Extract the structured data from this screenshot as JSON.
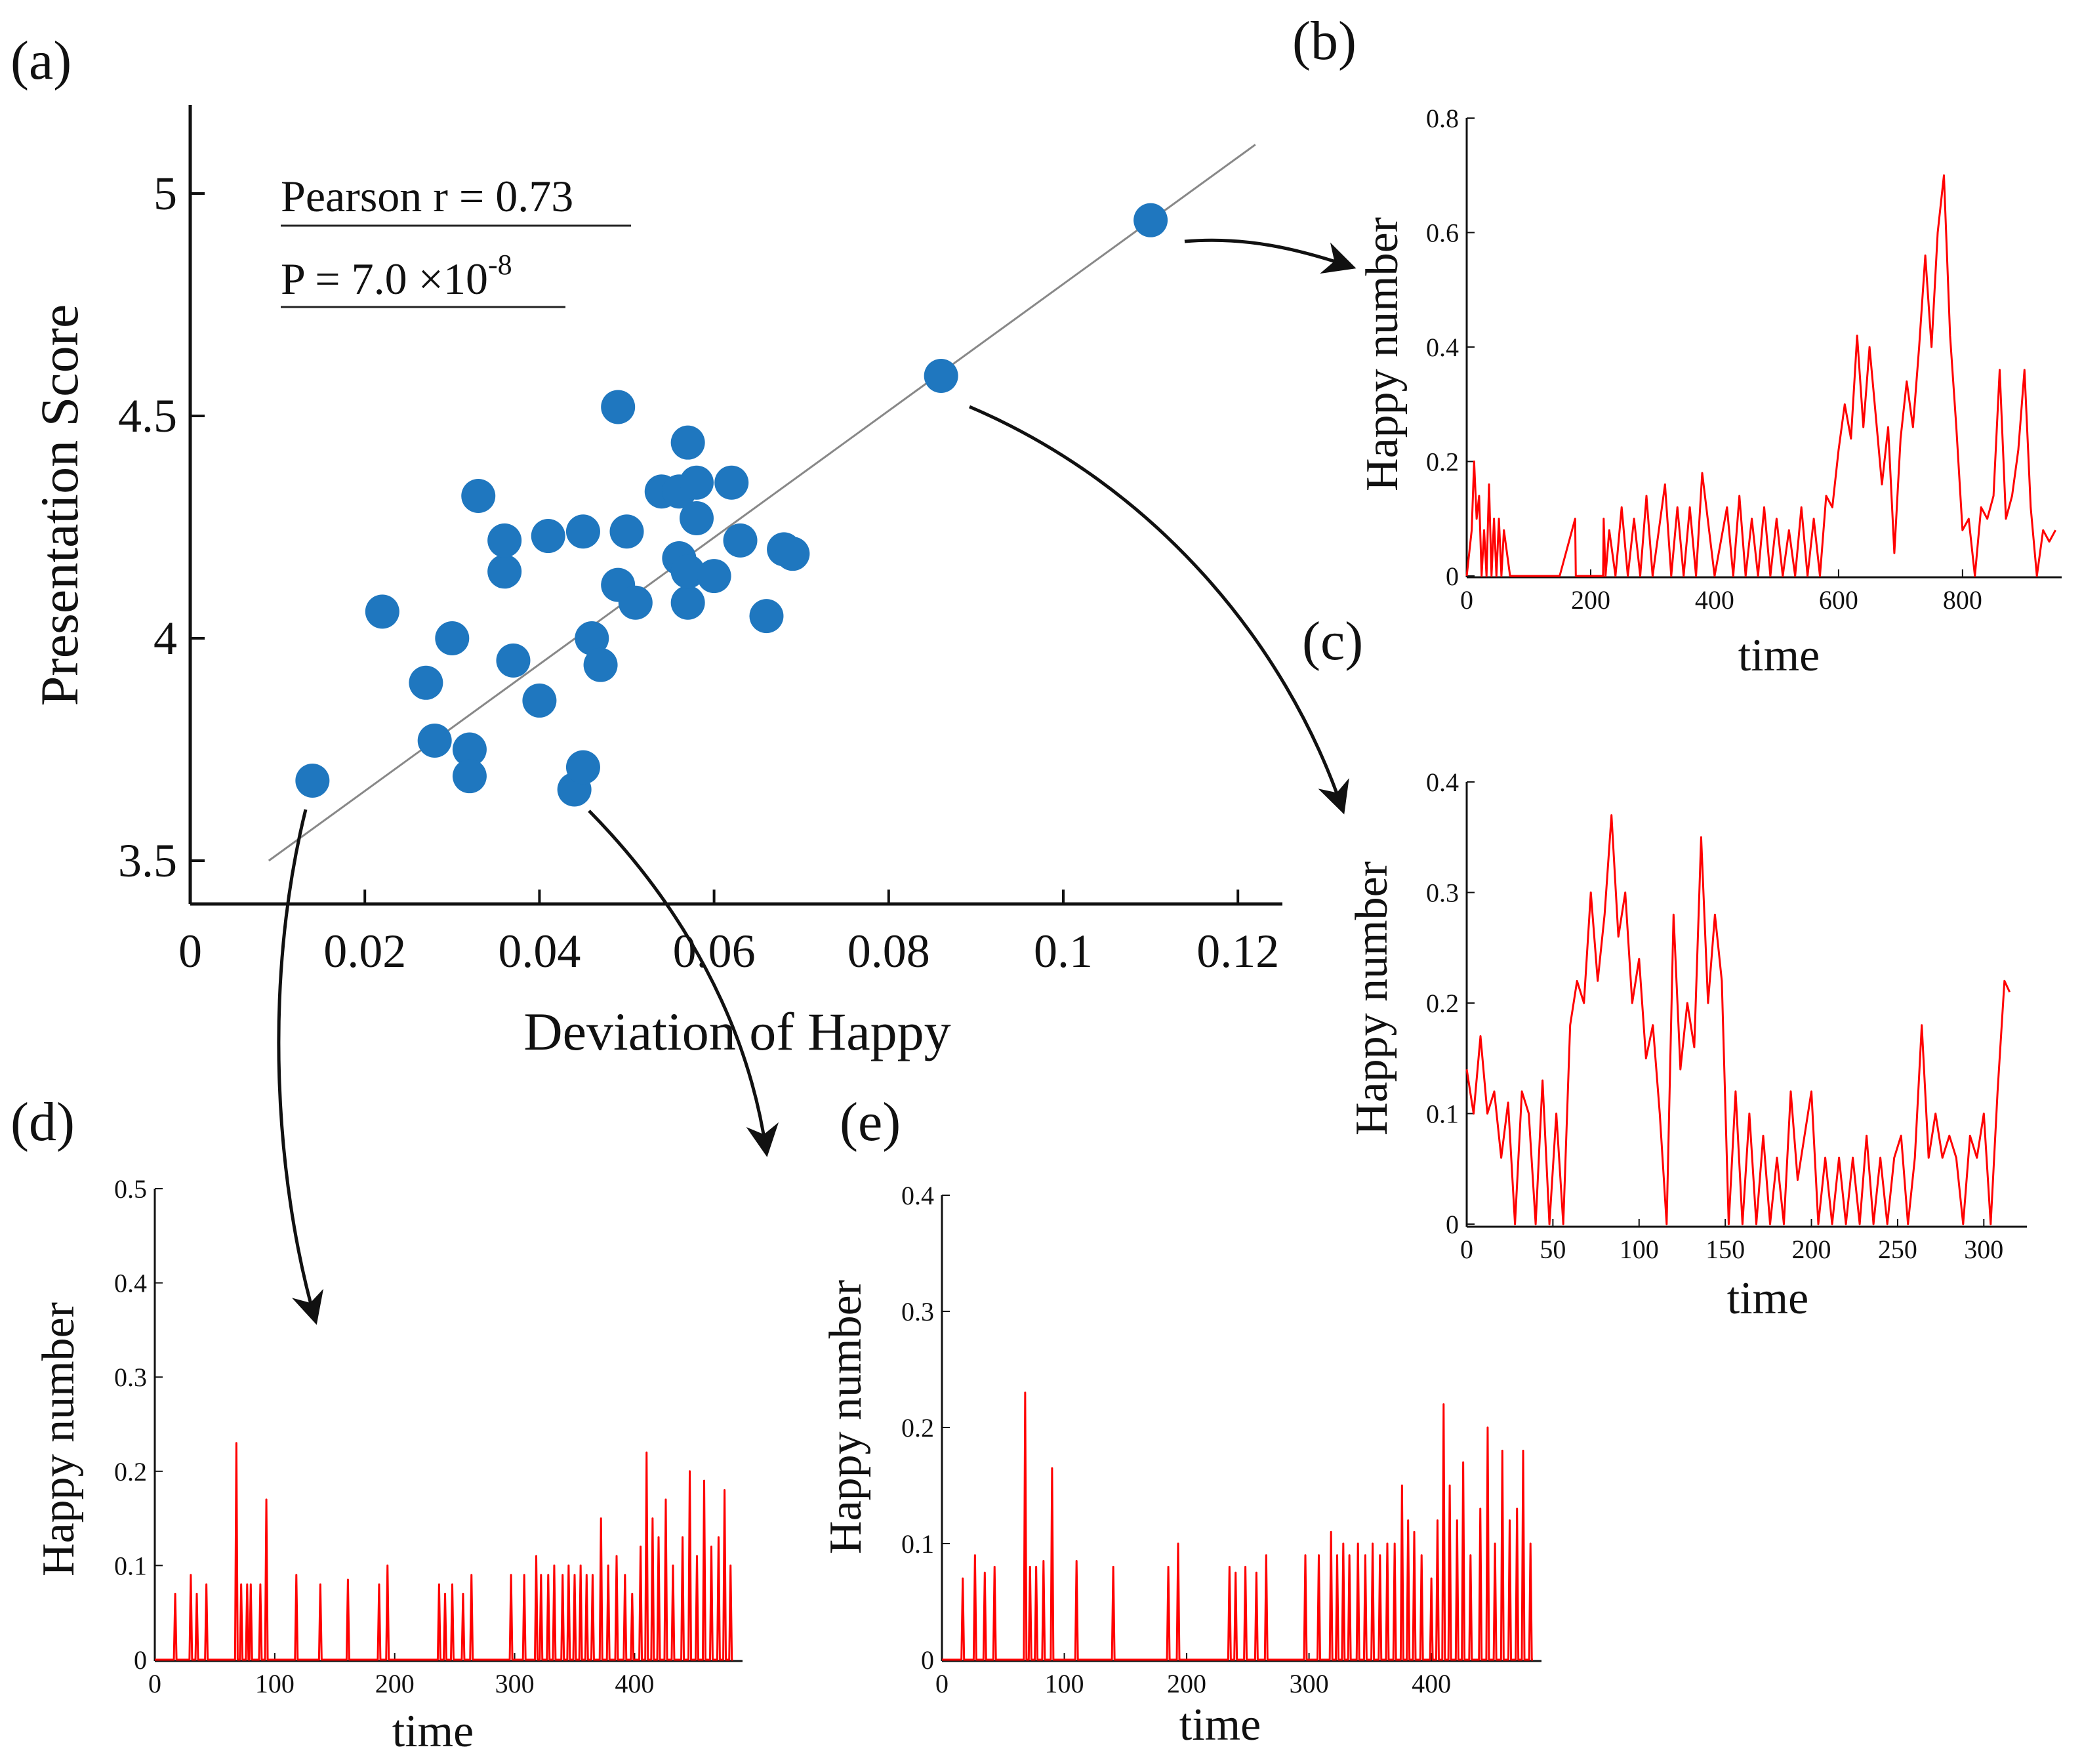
{
  "chart_data": [
    {
      "id": "a",
      "panel_label": "(a)",
      "type": "scatter",
      "xlabel": "Deviation of Happy",
      "ylabel": "Presentation Score",
      "xlim": [
        0,
        0.125
      ],
      "ylim": [
        3.4,
        5.2
      ],
      "xticks": [
        0,
        0.02,
        0.04,
        0.06,
        0.08,
        0.1,
        0.12
      ],
      "xtick_labels": [
        "0",
        "0.02",
        "0.04",
        "0.06",
        "0.08",
        "0.1",
        "0.12"
      ],
      "yticks": [
        3.5,
        4,
        4.5,
        5
      ],
      "ytick_labels": [
        "3.5",
        "4",
        "4.5",
        "5"
      ],
      "annotations": {
        "pearson": "Pearson r = 0.73",
        "p_prefix": "P = 7.0 ×10",
        "p_exponent": "-8"
      },
      "fit_line": {
        "x": [
          0.009,
          0.122
        ],
        "y": [
          3.5,
          5.11
        ]
      },
      "colors": {
        "points": "#1f77bf",
        "fit": "#888888"
      },
      "points": [
        {
          "x": 0.014,
          "y": 3.68
        },
        {
          "x": 0.022,
          "y": 4.06
        },
        {
          "x": 0.027,
          "y": 3.9
        },
        {
          "x": 0.028,
          "y": 3.77
        },
        {
          "x": 0.03,
          "y": 4.0
        },
        {
          "x": 0.032,
          "y": 3.75
        },
        {
          "x": 0.032,
          "y": 3.69
        },
        {
          "x": 0.033,
          "y": 4.32
        },
        {
          "x": 0.036,
          "y": 4.15
        },
        {
          "x": 0.036,
          "y": 4.22
        },
        {
          "x": 0.037,
          "y": 3.95
        },
        {
          "x": 0.04,
          "y": 3.86
        },
        {
          "x": 0.041,
          "y": 4.23
        },
        {
          "x": 0.044,
          "y": 3.66
        },
        {
          "x": 0.045,
          "y": 4.24
        },
        {
          "x": 0.045,
          "y": 3.71
        },
        {
          "x": 0.046,
          "y": 4.0
        },
        {
          "x": 0.047,
          "y": 3.94
        },
        {
          "x": 0.049,
          "y": 4.52
        },
        {
          "x": 0.049,
          "y": 4.12
        },
        {
          "x": 0.05,
          "y": 4.24
        },
        {
          "x": 0.051,
          "y": 4.08
        },
        {
          "x": 0.054,
          "y": 4.33
        },
        {
          "x": 0.056,
          "y": 4.33
        },
        {
          "x": 0.056,
          "y": 4.18
        },
        {
          "x": 0.057,
          "y": 4.44
        },
        {
          "x": 0.057,
          "y": 4.08
        },
        {
          "x": 0.057,
          "y": 4.15
        },
        {
          "x": 0.058,
          "y": 4.35
        },
        {
          "x": 0.058,
          "y": 4.27
        },
        {
          "x": 0.06,
          "y": 4.14
        },
        {
          "x": 0.062,
          "y": 4.35
        },
        {
          "x": 0.063,
          "y": 4.22
        },
        {
          "x": 0.066,
          "y": 4.05
        },
        {
          "x": 0.068,
          "y": 4.2
        },
        {
          "x": 0.069,
          "y": 4.19
        },
        {
          "x": 0.086,
          "y": 4.59
        },
        {
          "x": 0.11,
          "y": 4.94
        }
      ]
    },
    {
      "id": "b",
      "panel_label": "(b)",
      "type": "line",
      "xlabel": "time",
      "ylabel": "Happy number",
      "xlim": [
        0,
        960
      ],
      "ylim": [
        0,
        0.8
      ],
      "xticks": [
        0,
        200,
        400,
        600,
        800
      ],
      "xtick_labels": [
        "0",
        "200",
        "400",
        "600",
        "800"
      ],
      "yticks": [
        0,
        0.2,
        0.4,
        0.6,
        0.8
      ],
      "ytick_labels": [
        "0",
        "0.2",
        "0.4",
        "0.6",
        "0.8"
      ],
      "color": "#ff0000",
      "series": [
        {
          "name": "Happy number",
          "x": [
            0,
            8,
            12,
            16,
            20,
            24,
            28,
            32,
            36,
            40,
            44,
            48,
            52,
            56,
            60,
            70,
            80,
            100,
            120,
            140,
            150,
            175,
            176,
            180,
            220,
            221,
            224,
            230,
            240,
            250,
            260,
            270,
            280,
            290,
            300,
            310,
            320,
            330,
            340,
            350,
            360,
            370,
            380,
            400,
            420,
            430,
            440,
            450,
            460,
            470,
            480,
            490,
            500,
            510,
            520,
            530,
            540,
            550,
            560,
            570,
            580,
            590,
            600,
            610,
            620,
            630,
            640,
            650,
            660,
            670,
            680,
            690,
            700,
            710,
            720,
            730,
            740,
            750,
            760,
            770,
            780,
            790,
            800,
            810,
            820,
            830,
            840,
            850,
            860,
            870,
            880,
            890,
            900,
            910,
            920,
            930,
            940,
            950
          ],
          "y": [
            0,
            0.08,
            0.2,
            0.1,
            0.14,
            0,
            0.08,
            0,
            0.16,
            0,
            0.1,
            0,
            0.1,
            0,
            0.08,
            0,
            0,
            0,
            0,
            0,
            0,
            0.1,
            0,
            0,
            0,
            0.1,
            0,
            0.08,
            0,
            0.12,
            0,
            0.1,
            0,
            0.14,
            0,
            0.08,
            0.16,
            0,
            0.12,
            0,
            0.12,
            0,
            0.18,
            0,
            0.12,
            0,
            0.14,
            0,
            0.1,
            0,
            0.12,
            0,
            0.1,
            0,
            0.08,
            0,
            0.12,
            0,
            0.1,
            0,
            0.14,
            0.12,
            0.22,
            0.3,
            0.24,
            0.42,
            0.26,
            0.4,
            0.28,
            0.16,
            0.26,
            0.04,
            0.24,
            0.34,
            0.26,
            0.4,
            0.56,
            0.4,
            0.6,
            0.7,
            0.42,
            0.26,
            0.08,
            0.1,
            0.0,
            0.12,
            0.1,
            0.14,
            0.36,
            0.1,
            0.14,
            0.22,
            0.36,
            0.12,
            0,
            0.08,
            0.06,
            0.08
          ]
        }
      ]
    },
    {
      "id": "c",
      "panel_label": "(c)",
      "type": "line",
      "xlabel": "time",
      "ylabel": "Happy number",
      "xlim": [
        0,
        325
      ],
      "ylim": [
        0,
        0.4
      ],
      "xticks": [
        0,
        50,
        100,
        150,
        200,
        250,
        300
      ],
      "xtick_labels": [
        "0",
        "50",
        "100",
        "150",
        "200",
        "250",
        "300"
      ],
      "yticks": [
        0,
        0.1,
        0.2,
        0.3,
        0.4
      ],
      "ytick_labels": [
        "0",
        "0.1",
        "0.2",
        "0.3",
        "0.4"
      ],
      "color": "#ff0000",
      "series": [
        {
          "name": "Happy number",
          "x": [
            0,
            4,
            8,
            12,
            16,
            20,
            24,
            28,
            32,
            36,
            40,
            44,
            48,
            52,
            56,
            60,
            64,
            68,
            72,
            76,
            80,
            84,
            88,
            92,
            96,
            100,
            104,
            108,
            112,
            116,
            120,
            124,
            128,
            132,
            136,
            140,
            144,
            148,
            152,
            156,
            160,
            164,
            168,
            172,
            176,
            180,
            184,
            188,
            192,
            196,
            200,
            204,
            208,
            212,
            216,
            220,
            224,
            228,
            232,
            236,
            240,
            244,
            248,
            252,
            256,
            260,
            264,
            268,
            272,
            276,
            280,
            284,
            288,
            292,
            296,
            300,
            304,
            308,
            312,
            315
          ],
          "y": [
            0.14,
            0.1,
            0.17,
            0.1,
            0.12,
            0.06,
            0.11,
            0.0,
            0.12,
            0.1,
            0.0,
            0.13,
            0.0,
            0.1,
            0.0,
            0.18,
            0.22,
            0.2,
            0.3,
            0.22,
            0.28,
            0.37,
            0.26,
            0.3,
            0.2,
            0.24,
            0.15,
            0.18,
            0.1,
            0.0,
            0.28,
            0.14,
            0.2,
            0.16,
            0.35,
            0.2,
            0.28,
            0.22,
            0.0,
            0.12,
            0.0,
            0.1,
            0.0,
            0.08,
            0.0,
            0.06,
            0.0,
            0.12,
            0.04,
            0.08,
            0.12,
            0.0,
            0.06,
            0.0,
            0.06,
            0.0,
            0.06,
            0.0,
            0.08,
            0.0,
            0.06,
            0.0,
            0.06,
            0.08,
            0.0,
            0.06,
            0.18,
            0.06,
            0.1,
            0.06,
            0.08,
            0.06,
            0.0,
            0.08,
            0.06,
            0.1,
            0.0,
            0.12,
            0.22,
            0.21
          ]
        }
      ]
    },
    {
      "id": "d",
      "panel_label": "(d)",
      "type": "line",
      "xlabel": "time",
      "ylabel": "Happy number",
      "xlim": [
        0,
        490
      ],
      "ylim": [
        0,
        0.5
      ],
      "xticks": [
        0,
        100,
        200,
        300,
        400
      ],
      "xtick_labels": [
        "0",
        "100",
        "200",
        "300",
        "400"
      ],
      "yticks": [
        0,
        0.1,
        0.2,
        0.3,
        0.4,
        0.5
      ],
      "ytick_labels": [
        "0",
        "0.1",
        "0.2",
        "0.3",
        "0.4",
        "0.5"
      ],
      "color": "#ff0000",
      "series": [
        {
          "name": "Happy number",
          "spikes": [
            [
              17,
              0.07
            ],
            [
              30,
              0.09
            ],
            [
              35,
              0.07
            ],
            [
              43,
              0.08
            ],
            [
              68,
              0.23
            ],
            [
              72,
              0.08
            ],
            [
              77,
              0.08
            ],
            [
              80,
              0.08
            ],
            [
              88,
              0.08
            ],
            [
              93,
              0.17
            ],
            [
              118,
              0.09
            ],
            [
              138,
              0.08
            ],
            [
              161,
              0.085
            ],
            [
              187,
              0.08
            ],
            [
              194,
              0.1
            ],
            [
              237,
              0.08
            ],
            [
              242,
              0.07
            ],
            [
              248,
              0.08
            ],
            [
              257,
              0.07
            ],
            [
              264,
              0.09
            ],
            [
              297,
              0.09
            ],
            [
              308,
              0.09
            ],
            [
              318,
              0.11
            ],
            [
              322,
              0.09
            ],
            [
              328,
              0.09
            ],
            [
              333,
              0.1
            ],
            [
              340,
              0.09
            ],
            [
              345,
              0.1
            ],
            [
              350,
              0.09
            ],
            [
              355,
              0.1
            ],
            [
              360,
              0.09
            ],
            [
              365,
              0.09
            ],
            [
              372,
              0.15
            ],
            [
              378,
              0.1
            ],
            [
              385,
              0.11
            ],
            [
              392,
              0.09
            ],
            [
              398,
              0.07
            ],
            [
              405,
              0.12
            ],
            [
              410,
              0.22
            ],
            [
              415,
              0.15
            ],
            [
              420,
              0.13
            ],
            [
              426,
              0.17
            ],
            [
              432,
              0.1
            ],
            [
              440,
              0.13
            ],
            [
              446,
              0.2
            ],
            [
              452,
              0.11
            ],
            [
              458,
              0.19
            ],
            [
              464,
              0.12
            ],
            [
              470,
              0.13
            ],
            [
              475,
              0.18
            ],
            [
              480,
              0.1
            ]
          ]
        }
      ]
    },
    {
      "id": "e",
      "panel_label": "(e)",
      "type": "line",
      "xlabel": "time",
      "ylabel": "Happy number",
      "xlim": [
        0,
        490
      ],
      "ylim": [
        0,
        0.4
      ],
      "xticks": [
        0,
        100,
        200,
        300,
        400
      ],
      "xtick_labels": [
        "0",
        "100",
        "200",
        "300",
        "400"
      ],
      "yticks": [
        0,
        0.1,
        0.2,
        0.3,
        0.4
      ],
      "ytick_labels": [
        "0",
        "0.1",
        "0.2",
        "0.3",
        "0.4"
      ],
      "color": "#ff0000",
      "series": [
        {
          "name": "Happy number",
          "spikes": [
            [
              17,
              0.07
            ],
            [
              27,
              0.09
            ],
            [
              35,
              0.075
            ],
            [
              43,
              0.08
            ],
            [
              68,
              0.23
            ],
            [
              72,
              0.08
            ],
            [
              77,
              0.08
            ],
            [
              83,
              0.085
            ],
            [
              90,
              0.165
            ],
            [
              110,
              0.085
            ],
            [
              140,
              0.08
            ],
            [
              185,
              0.08
            ],
            [
              193,
              0.1
            ],
            [
              235,
              0.08
            ],
            [
              240,
              0.075
            ],
            [
              248,
              0.08
            ],
            [
              257,
              0.075
            ],
            [
              265,
              0.09
            ],
            [
              297,
              0.09
            ],
            [
              308,
              0.09
            ],
            [
              318,
              0.11
            ],
            [
              323,
              0.09
            ],
            [
              328,
              0.1
            ],
            [
              333,
              0.09
            ],
            [
              340,
              0.1
            ],
            [
              346,
              0.09
            ],
            [
              352,
              0.1
            ],
            [
              358,
              0.09
            ],
            [
              364,
              0.1
            ],
            [
              370,
              0.1
            ],
            [
              376,
              0.15
            ],
            [
              381,
              0.12
            ],
            [
              386,
              0.11
            ],
            [
              392,
              0.09
            ],
            [
              400,
              0.07
            ],
            [
              405,
              0.12
            ],
            [
              410,
              0.22
            ],
            [
              415,
              0.15
            ],
            [
              421,
              0.12
            ],
            [
              426,
              0.17
            ],
            [
              432,
              0.09
            ],
            [
              440,
              0.13
            ],
            [
              446,
              0.2
            ],
            [
              452,
              0.1
            ],
            [
              458,
              0.18
            ],
            [
              464,
              0.12
            ],
            [
              470,
              0.13
            ],
            [
              475,
              0.18
            ],
            [
              481,
              0.1
            ]
          ]
        }
      ]
    }
  ]
}
